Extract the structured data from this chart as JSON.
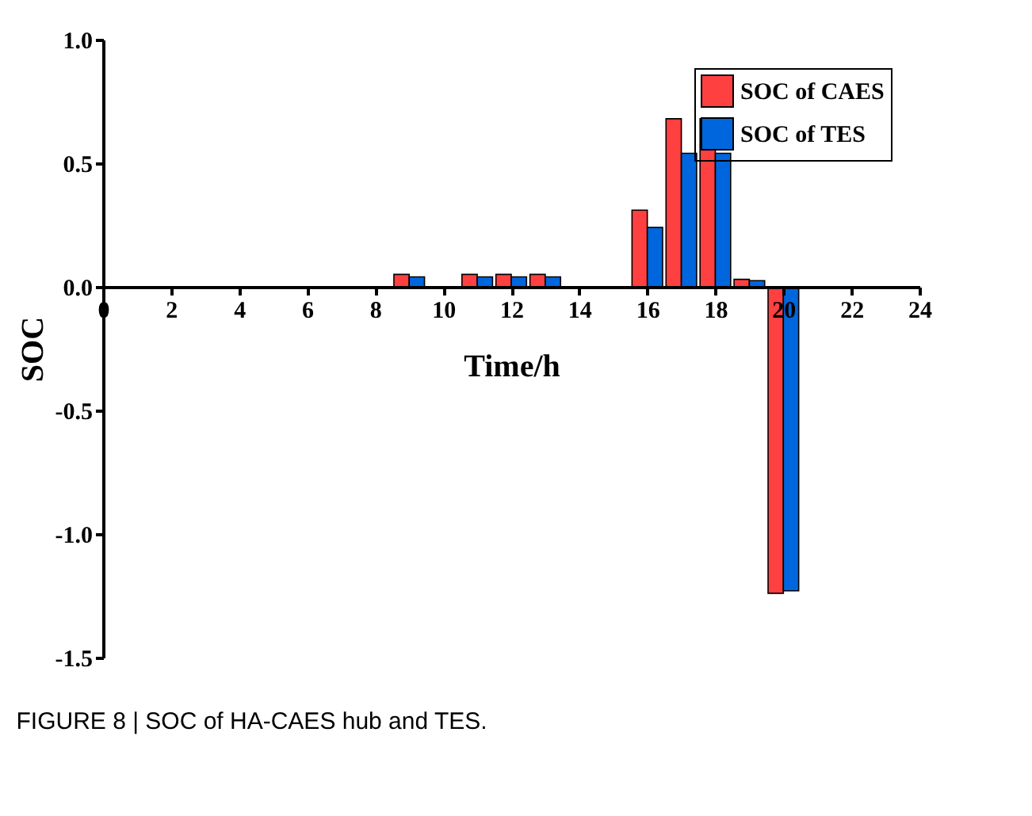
{
  "chart_data": {
    "type": "bar",
    "xlabel": "Time/h",
    "ylabel": "SOC",
    "x": [
      9,
      11,
      12,
      13,
      16,
      17,
      18,
      19,
      20
    ],
    "series": [
      {
        "name": "SOC of CAES",
        "color": "#ff4040",
        "values": [
          0.05,
          0.05,
          0.05,
          0.05,
          0.31,
          0.68,
          0.68,
          0.03,
          -1.24
        ]
      },
      {
        "name": "SOC of TES",
        "color": "#0066dd",
        "values": [
          0.04,
          0.04,
          0.04,
          0.04,
          0.24,
          0.54,
          0.54,
          0.025,
          -1.23
        ]
      }
    ],
    "xlim": [
      0,
      24
    ],
    "xticks": [
      0,
      2,
      4,
      6,
      8,
      10,
      12,
      14,
      16,
      18,
      20,
      22,
      24
    ],
    "ylim": [
      -1.5,
      1.0
    ],
    "yticks": [
      {
        "value": -1.5,
        "label": "-1.5"
      },
      {
        "value": -1.0,
        "label": "-1.0"
      },
      {
        "value": -0.5,
        "label": "-0.5"
      },
      {
        "value": 0,
        "label": "0.0"
      },
      {
        "value": 0.5,
        "label": "0.5"
      },
      {
        "value": 1.0,
        "label": "1.0"
      }
    ],
    "legend": "top right",
    "grid": false,
    "annotations": [
      "FIGURE 8 | SOC of HA-CAES hub and TES."
    ]
  }
}
